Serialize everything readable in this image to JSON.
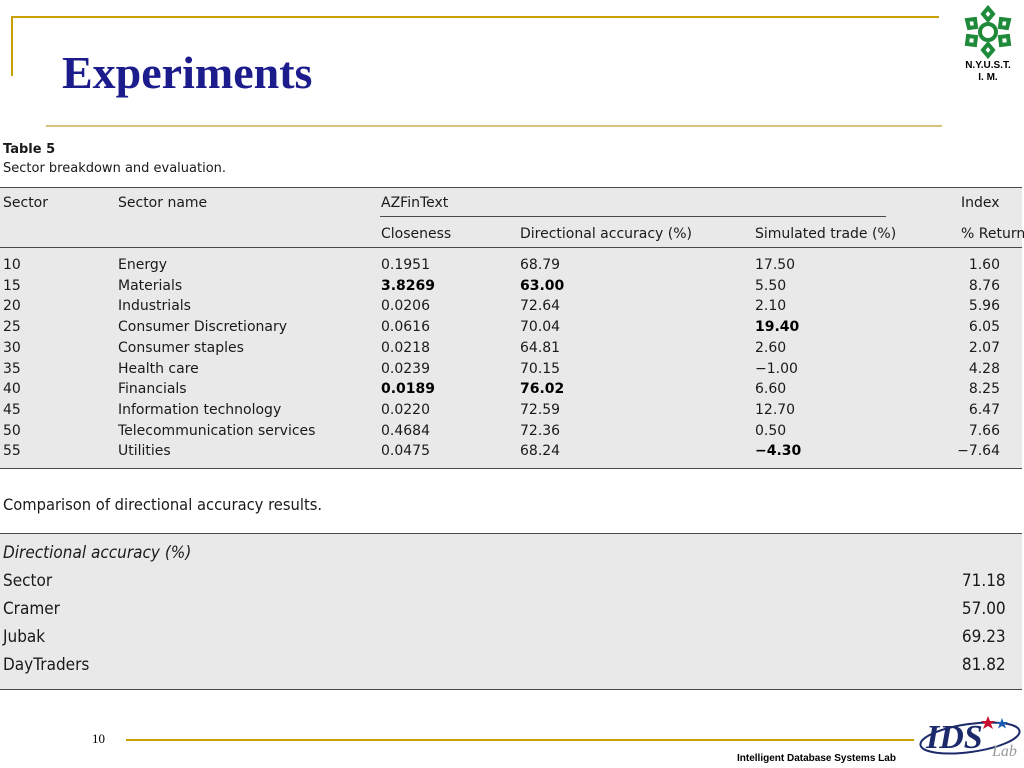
{
  "slide": {
    "title": "Experiments",
    "page_number": "10",
    "footer_lab": "Intelligent Database Systems Lab",
    "logo": {
      "line1": "N.Y.U.S.T.",
      "line2": "I. M.",
      "icon": "snowflake-icon"
    },
    "ids_logo": "ids-lab-logo"
  },
  "table5": {
    "label": "Table 5",
    "caption": "Sector breakdown and evaluation.",
    "headers": {
      "sector": "Sector",
      "sector_name": "Sector name",
      "group": "AZFinText",
      "index": "Index",
      "closeness": "Closeness",
      "directional": "Directional accuracy (%)",
      "simulated": "Simulated trade (%)",
      "return": "% Return"
    },
    "rows": [
      {
        "sector": "10",
        "name": "Energy",
        "closeness": "0.1951",
        "directional": "68.79",
        "simulated": "17.50",
        "ret": "1.60"
      },
      {
        "sector": "15",
        "name": "Materials",
        "closeness": "3.8269",
        "directional": "63.00",
        "simulated": "5.50",
        "ret": "8.76"
      },
      {
        "sector": "20",
        "name": "Industrials",
        "closeness": "0.0206",
        "directional": "72.64",
        "simulated": "2.10",
        "ret": "5.96"
      },
      {
        "sector": "25",
        "name": "Consumer Discretionary",
        "closeness": "0.0616",
        "directional": "70.04",
        "simulated": "19.40",
        "ret": "6.05"
      },
      {
        "sector": "30",
        "name": "Consumer staples",
        "closeness": "0.0218",
        "directional": "64.81",
        "simulated": "2.60",
        "ret": "2.07"
      },
      {
        "sector": "35",
        "name": "Health care",
        "closeness": "0.0239",
        "directional": "70.15",
        "simulated": "−1.00",
        "ret": "4.28"
      },
      {
        "sector": "40",
        "name": "Financials",
        "closeness": "0.0189",
        "directional": "76.02",
        "simulated": "6.60",
        "ret": "8.25"
      },
      {
        "sector": "45",
        "name": "Information technology",
        "closeness": "0.0220",
        "directional": "72.59",
        "simulated": "12.70",
        "ret": "6.47"
      },
      {
        "sector": "50",
        "name": "Telecommunication services",
        "closeness": "0.4684",
        "directional": "72.36",
        "simulated": "0.50",
        "ret": "7.66"
      },
      {
        "sector": "55",
        "name": "Utilities",
        "closeness": "0.0475",
        "directional": "68.24",
        "simulated": "−4.30",
        "ret": "−7.64"
      }
    ]
  },
  "comparison": {
    "title": "Comparison of directional accuracy results.",
    "header": "Directional accuracy (%)",
    "rows": [
      {
        "label": "Sector",
        "value": "71.18"
      },
      {
        "label": "Cramer",
        "value": "57.00"
      },
      {
        "label": "Jubak",
        "value": "69.23"
      },
      {
        "label": "DayTraders",
        "value": "81.82"
      }
    ]
  }
}
